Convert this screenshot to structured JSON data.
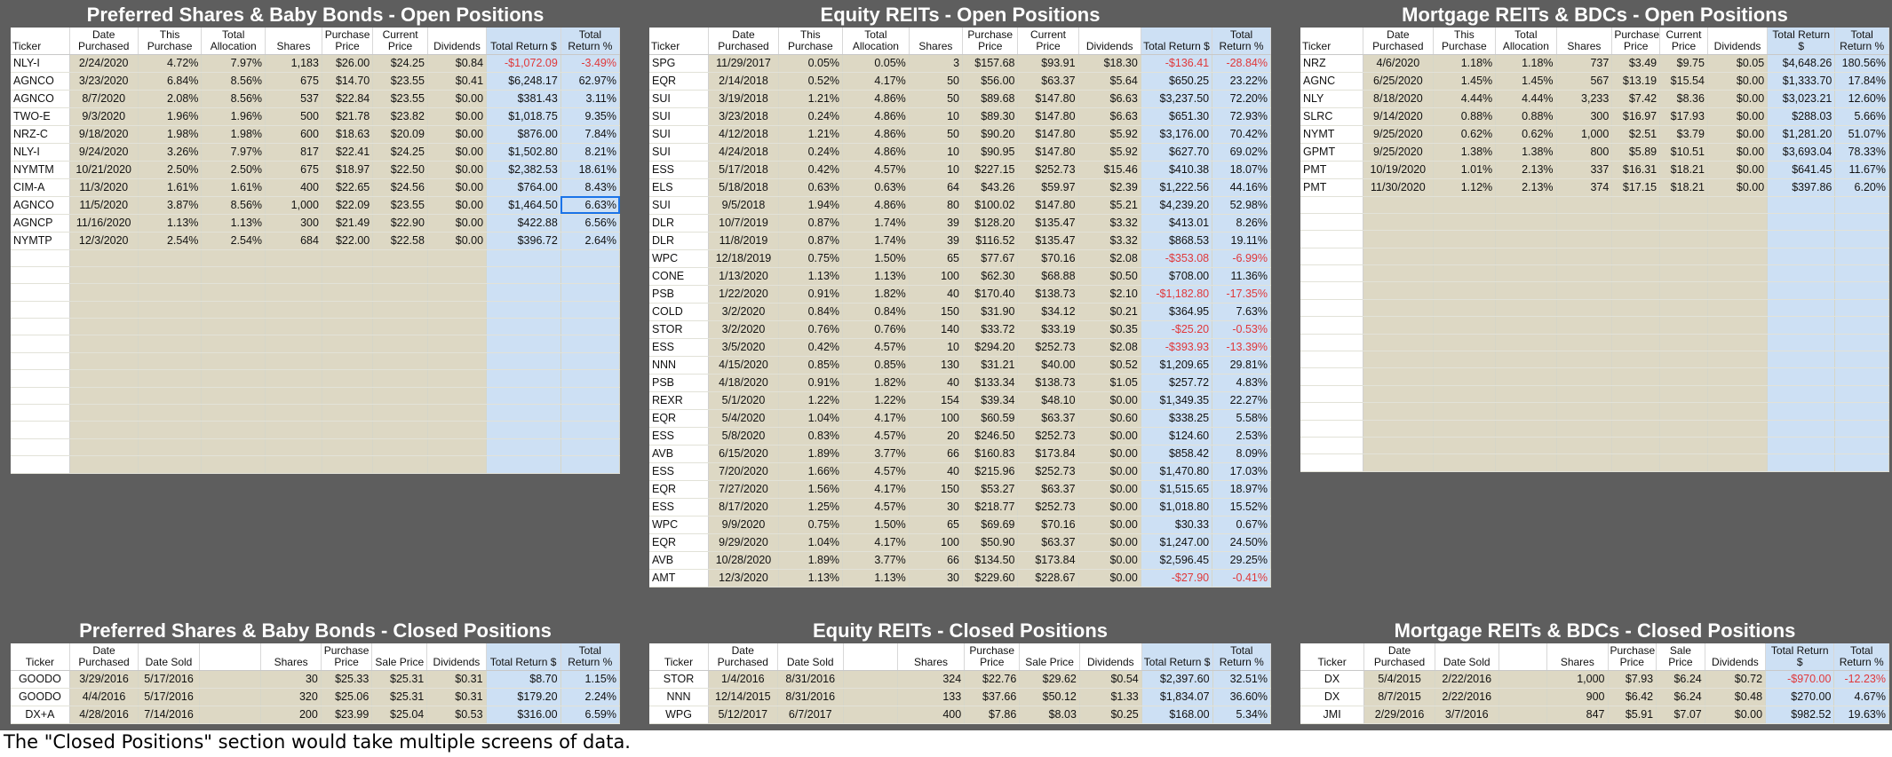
{
  "caption": "The \"Closed Positions\" section would take multiple screens of data.",
  "open_headers": [
    "Ticker",
    "Date Purchased",
    "This Purchase",
    "Total Allocation",
    "Shares",
    "Purchase Price",
    "Current Price",
    "Dividends",
    "Total Return $",
    "Total Return %"
  ],
  "closed_headers": [
    "Ticker",
    "Date Purchased",
    "Date Sold",
    "",
    "Shares",
    "Purchase Price",
    "Sale Price",
    "Dividends",
    "Total Return $",
    "Total Return %"
  ],
  "preferred_open": {
    "title": "Preferred Shares & Baby Bonds - Open Positions",
    "rows": [
      [
        "NLY-I",
        "2/24/2020",
        "4.72%",
        "7.97%",
        "1,183",
        "$26.00",
        "$24.25",
        "$0.84",
        "-$1,072.09",
        "-3.49%"
      ],
      [
        "AGNCO",
        "3/23/2020",
        "6.84%",
        "8.56%",
        "675",
        "$14.70",
        "$23.55",
        "$0.41",
        "$6,248.17",
        "62.97%"
      ],
      [
        "AGNCO",
        "8/7/2020",
        "2.08%",
        "8.56%",
        "537",
        "$22.84",
        "$23.55",
        "$0.00",
        "$381.43",
        "3.11%"
      ],
      [
        "TWO-E",
        "9/3/2020",
        "1.96%",
        "1.96%",
        "500",
        "$21.78",
        "$23.82",
        "$0.00",
        "$1,018.75",
        "9.35%"
      ],
      [
        "NRZ-C",
        "9/18/2020",
        "1.98%",
        "1.98%",
        "600",
        "$18.63",
        "$20.09",
        "$0.00",
        "$876.00",
        "7.84%"
      ],
      [
        "NLY-I",
        "9/24/2020",
        "3.26%",
        "7.97%",
        "817",
        "$22.41",
        "$24.25",
        "$0.00",
        "$1,502.80",
        "8.21%"
      ],
      [
        "NYMTM",
        "10/21/2020",
        "2.50%",
        "2.50%",
        "675",
        "$18.97",
        "$22.50",
        "$0.00",
        "$2,382.53",
        "18.61%"
      ],
      [
        "CIM-A",
        "11/3/2020",
        "1.61%",
        "1.61%",
        "400",
        "$22.65",
        "$24.56",
        "$0.00",
        "$764.00",
        "8.43%"
      ],
      [
        "AGNCO",
        "11/5/2020",
        "3.87%",
        "8.56%",
        "1,000",
        "$22.09",
        "$23.55",
        "$0.00",
        "$1,464.50",
        "6.63%"
      ],
      [
        "AGNCP",
        "11/16/2020",
        "1.13%",
        "1.13%",
        "300",
        "$21.49",
        "$22.90",
        "$0.00",
        "$422.88",
        "6.56%"
      ],
      [
        "NYMTP",
        "12/3/2020",
        "2.54%",
        "2.54%",
        "684",
        "$22.00",
        "$22.58",
        "$0.00",
        "$396.72",
        "2.64%"
      ]
    ]
  },
  "equity_open": {
    "title": "Equity REITs - Open Positions",
    "rows": [
      [
        "SPG",
        "11/29/2017",
        "0.05%",
        "0.05%",
        "3",
        "$157.68",
        "$93.91",
        "$18.30",
        "-$136.41",
        "-28.84%"
      ],
      [
        "EQR",
        "2/14/2018",
        "0.52%",
        "4.17%",
        "50",
        "$56.00",
        "$63.37",
        "$5.64",
        "$650.25",
        "23.22%"
      ],
      [
        "SUI",
        "3/19/2018",
        "1.21%",
        "4.86%",
        "50",
        "$89.68",
        "$147.80",
        "$6.63",
        "$3,237.50",
        "72.20%"
      ],
      [
        "SUI",
        "3/23/2018",
        "0.24%",
        "4.86%",
        "10",
        "$89.30",
        "$147.80",
        "$6.63",
        "$651.30",
        "72.93%"
      ],
      [
        "SUI",
        "4/12/2018",
        "1.21%",
        "4.86%",
        "50",
        "$90.20",
        "$147.80",
        "$5.92",
        "$3,176.00",
        "70.42%"
      ],
      [
        "SUI",
        "4/24/2018",
        "0.24%",
        "4.86%",
        "10",
        "$90.95",
        "$147.80",
        "$5.92",
        "$627.70",
        "69.02%"
      ],
      [
        "ESS",
        "5/17/2018",
        "0.42%",
        "4.57%",
        "10",
        "$227.15",
        "$252.73",
        "$15.46",
        "$410.38",
        "18.07%"
      ],
      [
        "ELS",
        "5/18/2018",
        "0.63%",
        "0.63%",
        "64",
        "$43.26",
        "$59.97",
        "$2.39",
        "$1,222.56",
        "44.16%"
      ],
      [
        "SUI",
        "9/5/2018",
        "1.94%",
        "4.86%",
        "80",
        "$100.02",
        "$147.80",
        "$5.21",
        "$4,239.20",
        "52.98%"
      ],
      [
        "DLR",
        "10/7/2019",
        "0.87%",
        "1.74%",
        "39",
        "$128.20",
        "$135.47",
        "$3.32",
        "$413.01",
        "8.26%"
      ],
      [
        "DLR",
        "11/8/2019",
        "0.87%",
        "1.74%",
        "39",
        "$116.52",
        "$135.47",
        "$3.32",
        "$868.53",
        "19.11%"
      ],
      [
        "WPC",
        "12/18/2019",
        "0.75%",
        "1.50%",
        "65",
        "$77.67",
        "$70.16",
        "$2.08",
        "-$353.08",
        "-6.99%"
      ],
      [
        "CONE",
        "1/13/2020",
        "1.13%",
        "1.13%",
        "100",
        "$62.30",
        "$68.88",
        "$0.50",
        "$708.00",
        "11.36%"
      ],
      [
        "PSB",
        "1/22/2020",
        "0.91%",
        "1.82%",
        "40",
        "$170.40",
        "$138.73",
        "$2.10",
        "-$1,182.80",
        "-17.35%"
      ],
      [
        "COLD",
        "3/2/2020",
        "0.84%",
        "0.84%",
        "150",
        "$31.90",
        "$34.12",
        "$0.21",
        "$364.95",
        "7.63%"
      ],
      [
        "STOR",
        "3/2/2020",
        "0.76%",
        "0.76%",
        "140",
        "$33.72",
        "$33.19",
        "$0.35",
        "-$25.20",
        "-0.53%"
      ],
      [
        "ESS",
        "3/5/2020",
        "0.42%",
        "4.57%",
        "10",
        "$294.20",
        "$252.73",
        "$2.08",
        "-$393.93",
        "-13.39%"
      ],
      [
        "NNN",
        "4/15/2020",
        "0.85%",
        "0.85%",
        "130",
        "$31.21",
        "$40.00",
        "$0.52",
        "$1,209.65",
        "29.81%"
      ],
      [
        "PSB",
        "4/18/2020",
        "0.91%",
        "1.82%",
        "40",
        "$133.34",
        "$138.73",
        "$1.05",
        "$257.72",
        "4.83%"
      ],
      [
        "REXR",
        "5/1/2020",
        "1.22%",
        "1.22%",
        "154",
        "$39.34",
        "$48.10",
        "$0.00",
        "$1,349.35",
        "22.27%"
      ],
      [
        "EQR",
        "5/4/2020",
        "1.04%",
        "4.17%",
        "100",
        "$60.59",
        "$63.37",
        "$0.60",
        "$338.25",
        "5.58%"
      ],
      [
        "ESS",
        "5/8/2020",
        "0.83%",
        "4.57%",
        "20",
        "$246.50",
        "$252.73",
        "$0.00",
        "$124.60",
        "2.53%"
      ],
      [
        "AVB",
        "6/15/2020",
        "1.89%",
        "3.77%",
        "66",
        "$160.83",
        "$173.84",
        "$0.00",
        "$858.42",
        "8.09%"
      ],
      [
        "ESS",
        "7/20/2020",
        "1.66%",
        "4.57%",
        "40",
        "$215.96",
        "$252.73",
        "$0.00",
        "$1,470.80",
        "17.03%"
      ],
      [
        "EQR",
        "7/27/2020",
        "1.56%",
        "4.17%",
        "150",
        "$53.27",
        "$63.37",
        "$0.00",
        "$1,515.65",
        "18.97%"
      ],
      [
        "ESS",
        "8/17/2020",
        "1.25%",
        "4.57%",
        "30",
        "$218.77",
        "$252.73",
        "$0.00",
        "$1,018.80",
        "15.52%"
      ],
      [
        "WPC",
        "9/9/2020",
        "0.75%",
        "1.50%",
        "65",
        "$69.69",
        "$70.16",
        "$0.00",
        "$30.33",
        "0.67%"
      ],
      [
        "EQR",
        "9/29/2020",
        "1.04%",
        "4.17%",
        "100",
        "$50.90",
        "$63.37",
        "$0.00",
        "$1,247.00",
        "24.50%"
      ],
      [
        "AVB",
        "10/28/2020",
        "1.89%",
        "3.77%",
        "66",
        "$134.50",
        "$173.84",
        "$0.00",
        "$2,596.45",
        "29.25%"
      ],
      [
        "AMT",
        "12/3/2020",
        "1.13%",
        "1.13%",
        "30",
        "$229.60",
        "$228.67",
        "$0.00",
        "-$27.90",
        "-0.41%"
      ]
    ]
  },
  "mortgage_open": {
    "title": "Mortgage REITs & BDCs - Open Positions",
    "rows": [
      [
        "NRZ",
        "4/6/2020",
        "1.18%",
        "1.18%",
        "737",
        "$3.49",
        "$9.75",
        "$0.05",
        "$4,648.26",
        "180.56%"
      ],
      [
        "AGNC",
        "6/25/2020",
        "1.45%",
        "1.45%",
        "567",
        "$13.19",
        "$15.54",
        "$0.00",
        "$1,333.70",
        "17.84%"
      ],
      [
        "NLY",
        "8/18/2020",
        "4.44%",
        "4.44%",
        "3,233",
        "$7.42",
        "$8.36",
        "$0.00",
        "$3,023.21",
        "12.60%"
      ],
      [
        "SLRC",
        "9/14/2020",
        "0.88%",
        "0.88%",
        "300",
        "$16.97",
        "$17.93",
        "$0.00",
        "$288.03",
        "5.66%"
      ],
      [
        "NYMT",
        "9/25/2020",
        "0.62%",
        "0.62%",
        "1,000",
        "$2.51",
        "$3.79",
        "$0.00",
        "$1,281.20",
        "51.07%"
      ],
      [
        "GPMT",
        "9/25/2020",
        "1.38%",
        "1.38%",
        "800",
        "$5.89",
        "$10.51",
        "$0.00",
        "$3,693.04",
        "78.33%"
      ],
      [
        "PMT",
        "10/19/2020",
        "1.01%",
        "2.13%",
        "337",
        "$16.31",
        "$18.21",
        "$0.00",
        "$641.45",
        "11.67%"
      ],
      [
        "PMT",
        "11/30/2020",
        "1.12%",
        "2.13%",
        "374",
        "$17.15",
        "$18.21",
        "$0.00",
        "$397.86",
        "6.20%"
      ]
    ]
  },
  "preferred_closed": {
    "title": "Preferred Shares & Baby Bonds - Closed Positions",
    "rows": [
      [
        "GOODO",
        "3/29/2016",
        "5/17/2016",
        "",
        "30",
        "$25.33",
        "$25.31",
        "$0.31",
        "$8.70",
        "1.15%"
      ],
      [
        "GOODO",
        "4/4/2016",
        "5/17/2016",
        "",
        "320",
        "$25.06",
        "$25.31",
        "$0.31",
        "$179.20",
        "2.24%"
      ],
      [
        "DX+A",
        "4/28/2016",
        "7/14/2016",
        "",
        "200",
        "$23.99",
        "$25.04",
        "$0.53",
        "$316.00",
        "6.59%"
      ]
    ]
  },
  "equity_closed": {
    "title": "Equity REITs - Closed Positions",
    "rows": [
      [
        "STOR",
        "1/4/2016",
        "8/31/2016",
        "",
        "324",
        "$22.76",
        "$29.62",
        "$0.54",
        "$2,397.60",
        "32.51%"
      ],
      [
        "NNN",
        "12/14/2015",
        "8/31/2016",
        "",
        "133",
        "$37.66",
        "$50.12",
        "$1.33",
        "$1,834.07",
        "36.60%"
      ],
      [
        "WPG",
        "5/12/2017",
        "6/7/2017",
        "",
        "400",
        "$7.86",
        "$8.03",
        "$0.25",
        "$168.00",
        "5.34%"
      ]
    ]
  },
  "mortgage_closed": {
    "title": "Mortgage REITs & BDCs - Closed Positions",
    "rows": [
      [
        "DX",
        "5/4/2015",
        "2/22/2016",
        "",
        "1,000",
        "$7.93",
        "$6.24",
        "$0.72",
        "-$970.00",
        "-12.23%"
      ],
      [
        "DX",
        "8/7/2015",
        "2/22/2016",
        "",
        "900",
        "$6.42",
        "$6.24",
        "$0.48",
        "$270.00",
        "4.67%"
      ],
      [
        "JMI",
        "2/29/2016",
        "3/7/2016",
        "",
        "847",
        "$5.91",
        "$7.07",
        "$0.00",
        "$982.52",
        "19.63%"
      ]
    ]
  }
}
